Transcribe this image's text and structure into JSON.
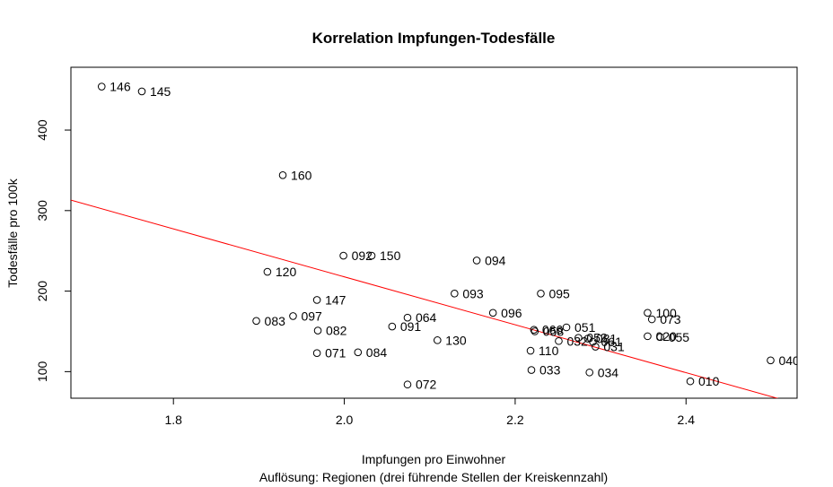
{
  "chart_data": {
    "type": "scatter",
    "title": "Korrelation Impfungen-Todesfälle",
    "xlabel": "Impfungen pro Einwohner",
    "xlabel2": "Auflösung: Regionen (drei führende Stellen der Kreiskennzahl)",
    "ylabel": "Todesfälle pro 100k",
    "xlim": [
      1.68,
      2.53
    ],
    "ylim": [
      67,
      478
    ],
    "xticks": [
      1.8,
      2.0,
      2.2,
      2.4
    ],
    "xtick_labels": [
      "1.8",
      "2.0",
      "2.2",
      "2.4"
    ],
    "yticks": [
      100,
      200,
      300,
      400
    ],
    "ytick_labels": [
      "100",
      "200",
      "300",
      "400"
    ],
    "grid": false,
    "regression_line": {
      "color": "#ff0000",
      "x": [
        1.68,
        2.53
      ],
      "y": [
        313,
        60
      ]
    },
    "points": [
      {
        "x": 1.716,
        "y": 454,
        "label": "146"
      },
      {
        "x": 1.763,
        "y": 448,
        "label": "145"
      },
      {
        "x": 1.928,
        "y": 344,
        "label": "160"
      },
      {
        "x": 1.91,
        "y": 224,
        "label": "120"
      },
      {
        "x": 1.999,
        "y": 244,
        "label": "092"
      },
      {
        "x": 2.032,
        "y": 244,
        "label": "150"
      },
      {
        "x": 2.155,
        "y": 238,
        "label": "094"
      },
      {
        "x": 2.129,
        "y": 197,
        "label": "093"
      },
      {
        "x": 2.23,
        "y": 197,
        "label": "095"
      },
      {
        "x": 1.968,
        "y": 189,
        "label": "147"
      },
      {
        "x": 2.174,
        "y": 173,
        "label": "096"
      },
      {
        "x": 2.355,
        "y": 173,
        "label": "100"
      },
      {
        "x": 2.36,
        "y": 165,
        "label": "073"
      },
      {
        "x": 1.94,
        "y": 169,
        "label": "097"
      },
      {
        "x": 1.897,
        "y": 163,
        "label": "083"
      },
      {
        "x": 2.074,
        "y": 167,
        "label": "064"
      },
      {
        "x": 2.056,
        "y": 156,
        "label": "091"
      },
      {
        "x": 1.969,
        "y": 151,
        "label": "082"
      },
      {
        "x": 2.222,
        "y": 152,
        "label": "066"
      },
      {
        "x": 2.223,
        "y": 150,
        "label": "058"
      },
      {
        "x": 2.26,
        "y": 155,
        "label": "051"
      },
      {
        "x": 2.355,
        "y": 144,
        "label": "020"
      },
      {
        "x": 2.37,
        "y": 143,
        "label": "055"
      },
      {
        "x": 2.274,
        "y": 142,
        "label": "053"
      },
      {
        "x": 2.285,
        "y": 141,
        "label": "081"
      },
      {
        "x": 2.251,
        "y": 138,
        "label": "032"
      },
      {
        "x": 2.291,
        "y": 137,
        "label": "061"
      },
      {
        "x": 2.294,
        "y": 131,
        "label": "031"
      },
      {
        "x": 2.109,
        "y": 139,
        "label": "130"
      },
      {
        "x": 2.218,
        "y": 126,
        "label": "110"
      },
      {
        "x": 1.968,
        "y": 123,
        "label": "071"
      },
      {
        "x": 2.016,
        "y": 124,
        "label": "084"
      },
      {
        "x": 2.219,
        "y": 102,
        "label": "033"
      },
      {
        "x": 2.287,
        "y": 99,
        "label": "034"
      },
      {
        "x": 2.499,
        "y": 114,
        "label": "040"
      },
      {
        "x": 2.405,
        "y": 88,
        "label": "010"
      },
      {
        "x": 2.074,
        "y": 84,
        "label": "072"
      }
    ]
  }
}
